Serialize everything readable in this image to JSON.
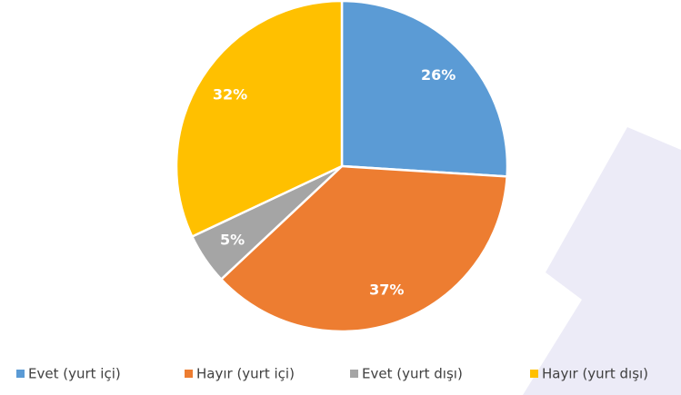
{
  "chart_data": {
    "type": "pie",
    "categories": [
      "Evet (yurt içi)",
      "Hayır (yurt içi)",
      "Evet (yurt dışı)",
      "Hayır (yurt dışı)"
    ],
    "values": [
      26,
      37,
      5,
      32
    ],
    "value_labels": [
      "26%",
      "37%",
      "5%",
      "32%"
    ],
    "colors": [
      "#5b9bd5",
      "#ed7d31",
      "#a5a5a5",
      "#ffc000"
    ],
    "legend": "bottom"
  }
}
